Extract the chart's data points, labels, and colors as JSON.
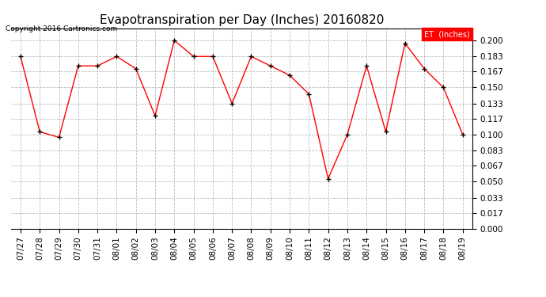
{
  "title": "Evapotranspiration per Day (Inches) 20160820",
  "copyright": "Copyright 2016 Cartronics.com",
  "legend_label": "ET  (Inches)",
  "legend_bg": "#ff0000",
  "legend_fg": "#ffffff",
  "x_labels": [
    "07/27",
    "07/28",
    "07/29",
    "07/30",
    "07/31",
    "08/01",
    "08/02",
    "08/03",
    "08/04",
    "08/05",
    "08/06",
    "08/07",
    "08/08",
    "08/09",
    "08/10",
    "08/11",
    "08/12",
    "08/13",
    "08/14",
    "08/15",
    "08/16",
    "08/17",
    "08/18",
    "08/19"
  ],
  "y_values": [
    0.183,
    0.103,
    0.097,
    0.173,
    0.173,
    0.183,
    0.17,
    0.12,
    0.2,
    0.183,
    0.183,
    0.133,
    0.183,
    0.173,
    0.163,
    0.143,
    0.053,
    0.1,
    0.173,
    0.103,
    0.197,
    0.17,
    0.15,
    0.1
  ],
  "ylim": [
    0.0,
    0.213
  ],
  "yticks": [
    0.0,
    0.017,
    0.033,
    0.05,
    0.067,
    0.083,
    0.1,
    0.117,
    0.133,
    0.15,
    0.167,
    0.183,
    0.2
  ],
  "line_color": "#ff0000",
  "marker_color": "#000000",
  "bg_color": "#ffffff",
  "grid_color": "#bbbbbb",
  "title_fontsize": 11,
  "tick_fontsize": 7.5,
  "copyright_fontsize": 6.5
}
